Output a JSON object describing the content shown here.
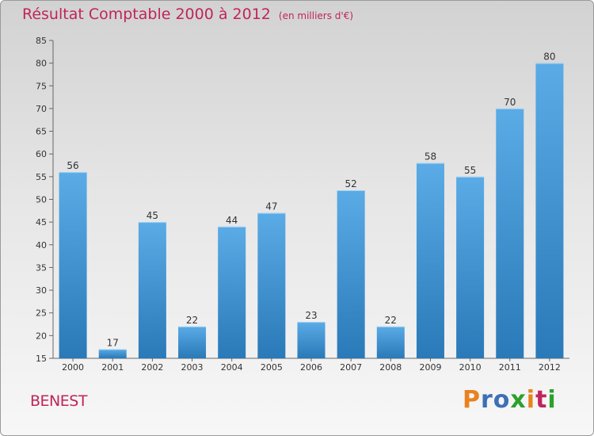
{
  "header": {
    "title": "Résultat Comptable 2000 à 2012",
    "subtitle": "(en milliers d'€)"
  },
  "footer": {
    "commune": "BENEST",
    "logo": {
      "letters": [
        "P",
        "r",
        "o",
        "x",
        "i",
        "t",
        "i"
      ],
      "colors": [
        "#e8821e",
        "#3d6fb6",
        "#3d6fb6",
        "#2da02d",
        "#e8821e",
        "#c0245c",
        "#2da02d"
      ],
      "text": "Proxiti"
    }
  },
  "colors": {
    "bar_top": "#5aabe6",
    "bar_bottom": "#2a79b8",
    "accent": "#c0245c"
  },
  "chart_data": {
    "type": "bar",
    "title": "Résultat Comptable 2000 à 2012",
    "subtitle": "(en milliers d'€)",
    "categories": [
      "2000",
      "2001",
      "2002",
      "2003",
      "2004",
      "2005",
      "2006",
      "2007",
      "2008",
      "2009",
      "2010",
      "2011",
      "2012"
    ],
    "values": [
      56,
      17,
      45,
      22,
      44,
      47,
      23,
      52,
      22,
      58,
      55,
      70,
      80
    ],
    "ylim": [
      15,
      85
    ],
    "yticks": [
      15,
      20,
      25,
      30,
      35,
      40,
      45,
      50,
      55,
      60,
      65,
      70,
      75,
      80,
      85
    ],
    "xlabel": "",
    "ylabel": "",
    "grid": false
  }
}
